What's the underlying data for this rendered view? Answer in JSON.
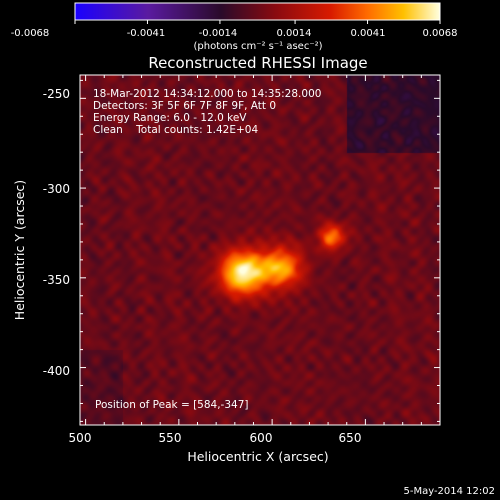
{
  "chart_data": {
    "type": "heatmap",
    "title": "Reconstructed RHESSI Image",
    "xlabel": "Heliocentric X (arcsec)",
    "ylabel": "Heliocentric Y (arcsec)",
    "xlim": [
      497,
      690
    ],
    "ylim": [
      -432,
      -237
    ],
    "xticks": [
      500,
      550,
      600,
      650
    ],
    "yticks": [
      -250,
      -300,
      -350,
      -400
    ],
    "annotations": [
      "18-Mar-2012 14:34:12.000 to 14:35:28.000",
      "Detectors: 3F 5F 6F 7F 8F 9F, Att 0",
      "Energy Range: 6.0 - 12.0 keV",
      "Clean    Total counts: 1.42E+04"
    ],
    "peak_label": "Position of Peak = [584,-347]",
    "peak": [
      584,
      -347
    ],
    "colorbar": {
      "range": [
        -0.0068,
        0.0068
      ],
      "ticks": [
        "-0.0068",
        "-0.0041",
        "-0.0014",
        "0.0014",
        "0.0041",
        "0.0068"
      ],
      "label": "(photons cm⁻² s⁻¹ asec⁻²)"
    },
    "colormap_colors": [
      "#1a00ff",
      "#5a1aa0",
      "#2a0a2a",
      "#8a0a10",
      "#d81a00",
      "#ff6a00",
      "#ffc000",
      "#ffffe0"
    ],
    "sources": [
      {
        "x": 584,
        "y": -347,
        "sigma": 9,
        "value": 0.0068
      },
      {
        "x": 605,
        "y": -344,
        "sigma": 8,
        "value": 0.0049
      },
      {
        "x": 632,
        "y": -327,
        "sigma": 5,
        "value": 0.0046
      }
    ]
  },
  "footer": {
    "date": "5-May-2014 12:02"
  }
}
